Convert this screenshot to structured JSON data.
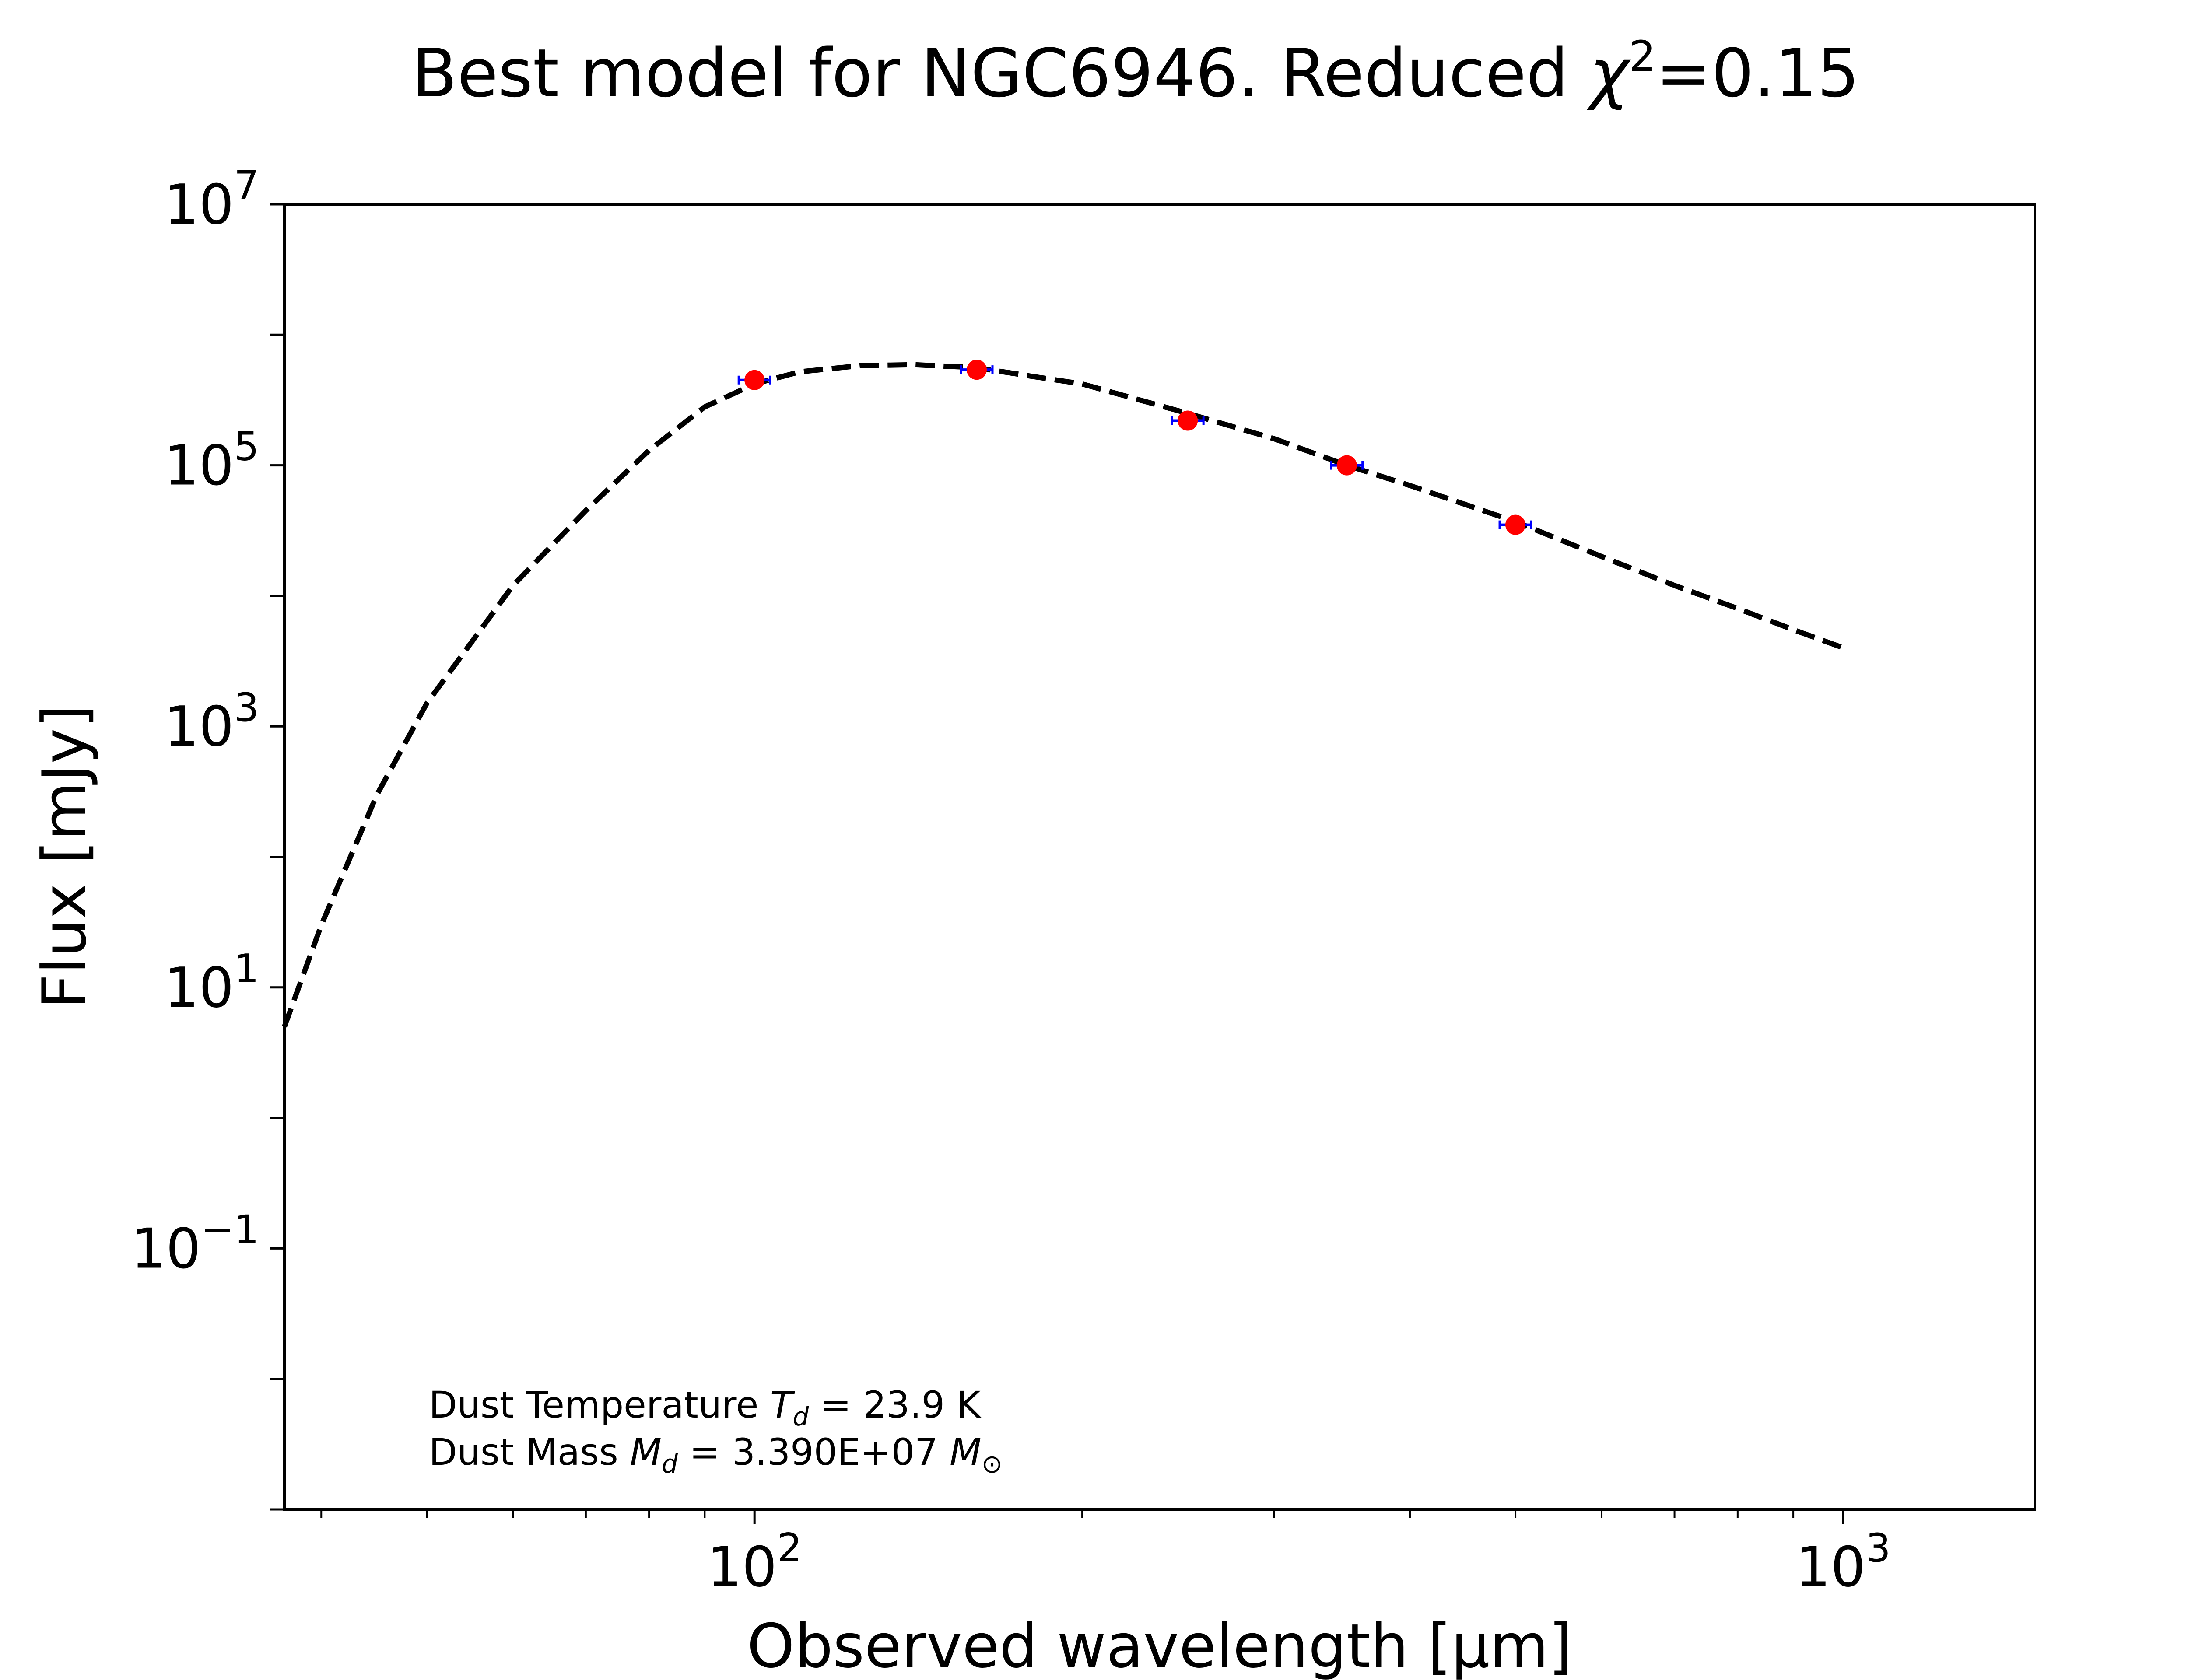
{
  "chart_data": {
    "type": "scatter",
    "title": {
      "prefix": "Best model for NGC6946. Reduced ",
      "symbol": "χ",
      "superscript": "2",
      "suffix": "=0.15"
    },
    "xlabel": "Observed wavelength [μm]",
    "ylabel": "Flux [mJy]",
    "x_scale": "log",
    "y_scale": "log",
    "xlim": [
      37,
      1500
    ],
    "ylim": [
      0.001,
      10000000
    ],
    "x_ticks": [
      {
        "value": 100,
        "base": "10",
        "exp": "2"
      },
      {
        "value": 1000,
        "base": "10",
        "exp": "3"
      }
    ],
    "y_ticks": [
      {
        "value": 0.1,
        "base": "10",
        "exp": "−1"
      },
      {
        "value": 10,
        "base": "10",
        "exp": "1"
      },
      {
        "value": 1000,
        "base": "10",
        "exp": "3"
      },
      {
        "value": 100000,
        "base": "10",
        "exp": "5"
      },
      {
        "value": 10000000,
        "base": "10",
        "exp": "7"
      }
    ],
    "grid": false,
    "series": [
      {
        "kind": "observed",
        "marker": "circle",
        "color": "#ff0000",
        "error_color": "#0000ff",
        "x": [
          100,
          160,
          250,
          350,
          500
        ],
        "y": [
          450000,
          540000,
          220000,
          100000,
          35000
        ]
      },
      {
        "kind": "model",
        "line_style": "dashed",
        "color": "#000000",
        "x": [
          37,
          40,
          45,
          50,
          60,
          70,
          80,
          90,
          100,
          110,
          125,
          140,
          160,
          180,
          200,
          250,
          300,
          350,
          400,
          500,
          600,
          700,
          800,
          900,
          1000
        ],
        "y": [
          5,
          30,
          300,
          1500,
          12000,
          45000,
          130000,
          280000,
          420000,
          520000,
          580000,
          590000,
          560000,
          480000,
          420000,
          250000,
          160000,
          100000,
          70000,
          37000,
          20000,
          12000,
          8000,
          5500,
          4000
        ]
      }
    ],
    "annotations": {
      "temperature": {
        "prefix": "Dust Temperature ",
        "symbol": "T",
        "sub": "d",
        "suffix": " = 23.9 K"
      },
      "mass": {
        "prefix": "Dust Mass ",
        "symbol": "M",
        "sub": "d",
        "middle": " = 3.390E+07 ",
        "unit_symbol": "M",
        "unit_sub": "⊙"
      }
    }
  }
}
